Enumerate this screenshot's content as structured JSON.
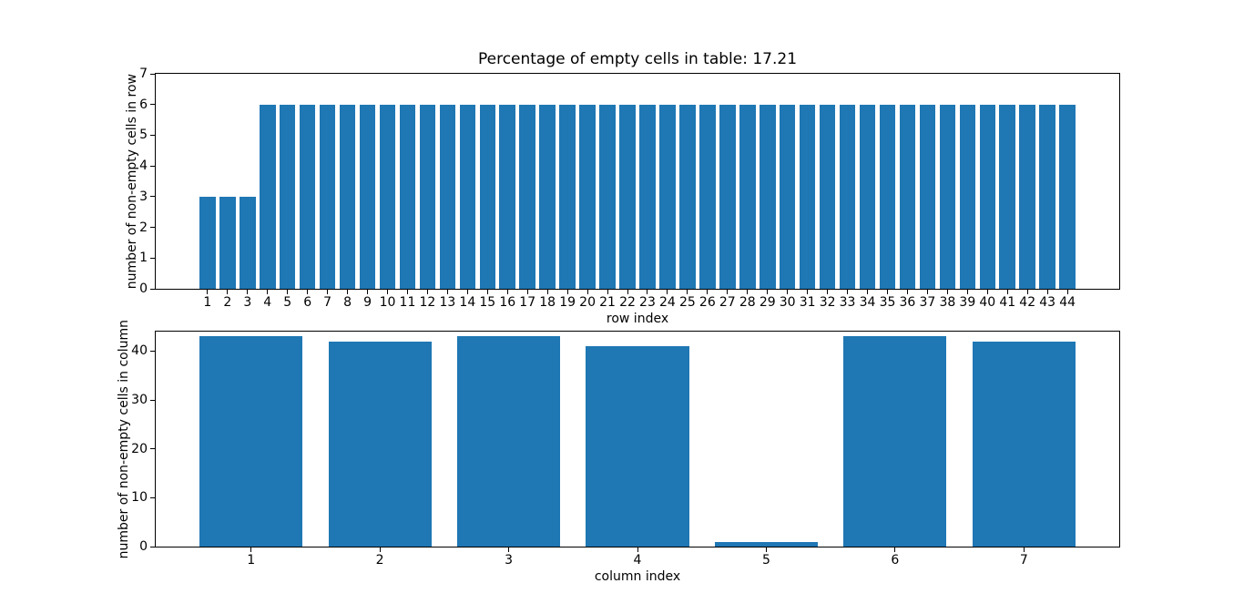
{
  "figure": {
    "background": "#ffffff",
    "accent": "#1f77b4"
  },
  "chart_data": [
    {
      "type": "bar",
      "title": "Percentage of empty cells in table: 17.21",
      "xlabel": "row index",
      "ylabel": "number of non-empty cells in row",
      "categories": [
        1,
        2,
        3,
        4,
        5,
        6,
        7,
        8,
        9,
        10,
        11,
        12,
        13,
        14,
        15,
        16,
        17,
        18,
        19,
        20,
        21,
        22,
        23,
        24,
        25,
        26,
        27,
        28,
        29,
        30,
        31,
        32,
        33,
        34,
        35,
        36,
        37,
        38,
        39,
        40,
        41,
        42,
        43,
        44
      ],
      "values": [
        3,
        3,
        3,
        6,
        6,
        6,
        6,
        6,
        6,
        6,
        6,
        6,
        6,
        6,
        6,
        6,
        6,
        6,
        6,
        6,
        6,
        6,
        6,
        6,
        6,
        6,
        6,
        6,
        6,
        6,
        6,
        6,
        6,
        6,
        6,
        6,
        6,
        6,
        6,
        6,
        6,
        6,
        6,
        6
      ],
      "yticks": [
        0,
        1,
        2,
        3,
        4,
        5,
        6,
        7
      ],
      "ylim": [
        0,
        7
      ],
      "xlim": [
        -1.59,
        46.59
      ],
      "bar_width": 0.8,
      "bar_color": "#1f77b4",
      "grid": "off",
      "legend": "none"
    },
    {
      "type": "bar",
      "title": "",
      "xlabel": "column index",
      "ylabel": "number of non-empty cells in column",
      "categories": [
        1,
        2,
        3,
        4,
        5,
        6,
        7
      ],
      "values": [
        43,
        42,
        43,
        41,
        1,
        43,
        42
      ],
      "yticks": [
        0,
        10,
        20,
        30,
        40
      ],
      "ylim": [
        0,
        44
      ],
      "xlim": [
        0.26,
        7.74
      ],
      "bar_width": 0.8,
      "bar_color": "#1f77b4",
      "grid": "off",
      "legend": "none"
    }
  ]
}
